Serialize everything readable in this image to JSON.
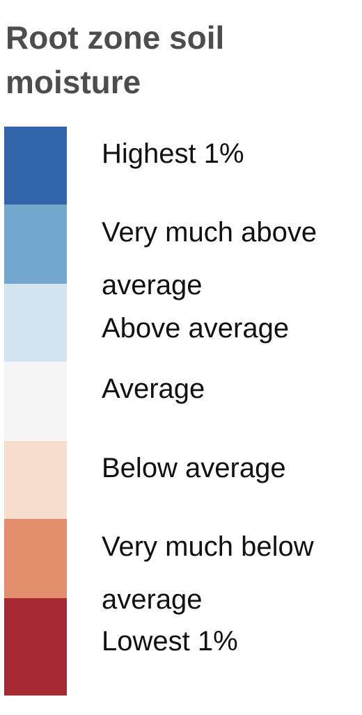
{
  "title": "Root zone soil moisture",
  "items": [
    {
      "label": "Highest 1%",
      "color": "#3164ab"
    },
    {
      "label": "Very much above average",
      "color": "#72a8cd"
    },
    {
      "label": "Above average",
      "color": "#d3e4f0"
    },
    {
      "label": "Average",
      "color": "#f5f5f5"
    },
    {
      "label": "Below average",
      "color": "#f7ddce"
    },
    {
      "label": "Very much below average",
      "color": "#e38e6c"
    },
    {
      "label": "Lowest 1%",
      "color": "#a62a32"
    }
  ]
}
